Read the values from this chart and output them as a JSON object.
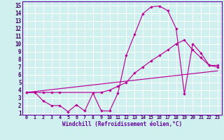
{
  "xlabel": "Windchill (Refroidissement éolien,°C)",
  "bg_color": "#cff0ee",
  "line_color": "#bb0099",
  "grid_color": "#ffffff",
  "spine_color": "#6600aa",
  "tick_color": "#440066",
  "xlim": [
    -0.5,
    23.5
  ],
  "ylim": [
    0.8,
    15.5
  ],
  "xticks": [
    0,
    1,
    2,
    3,
    4,
    5,
    6,
    7,
    8,
    9,
    10,
    11,
    12,
    13,
    14,
    15,
    16,
    17,
    18,
    19,
    20,
    21,
    22,
    23
  ],
  "yticks": [
    1,
    2,
    3,
    4,
    5,
    6,
    7,
    8,
    9,
    10,
    11,
    12,
    13,
    14,
    15
  ],
  "line1_x": [
    0,
    1,
    2,
    3,
    4,
    5,
    6,
    7,
    8,
    9,
    10,
    11,
    12,
    13,
    14,
    15,
    16,
    17,
    18,
    19,
    20,
    21,
    22,
    23
  ],
  "line1_y": [
    3.7,
    3.7,
    2.6,
    2.0,
    2.0,
    1.2,
    2.1,
    1.3,
    3.6,
    1.3,
    1.3,
    3.6,
    8.5,
    11.2,
    13.9,
    14.8,
    14.9,
    14.3,
    12.0,
    3.5,
    10.0,
    8.8,
    7.2,
    7.0
  ],
  "line2_x": [
    0,
    1,
    2,
    3,
    4,
    9,
    10,
    11,
    12,
    13,
    14,
    15,
    16,
    17,
    18,
    19,
    20,
    21,
    22,
    23
  ],
  "line2_y": [
    3.7,
    3.7,
    3.7,
    3.7,
    3.7,
    3.7,
    4.0,
    4.5,
    5.0,
    6.2,
    7.0,
    7.8,
    8.5,
    9.2,
    10.0,
    10.5,
    9.2,
    8.2,
    7.2,
    7.2
  ],
  "line3_x": [
    0,
    23
  ],
  "line3_y": [
    3.7,
    6.5
  ]
}
